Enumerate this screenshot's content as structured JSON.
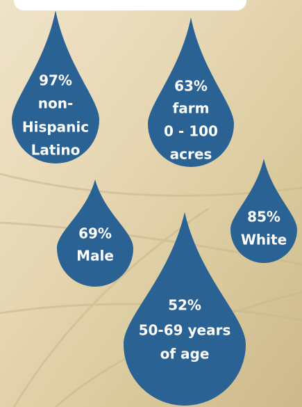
{
  "drops": [
    {
      "lines": [
        "97%",
        "non-",
        "Hispanic",
        "Latino"
      ]
    },
    {
      "lines": [
        "63%",
        "farm",
        "0 - 100",
        "acres"
      ]
    },
    {
      "lines": [
        "85%",
        "White"
      ]
    },
    {
      "lines": [
        "69%",
        "Male"
      ]
    },
    {
      "lines": [
        "52%",
        "50-69 years",
        "of age"
      ]
    }
  ]
}
